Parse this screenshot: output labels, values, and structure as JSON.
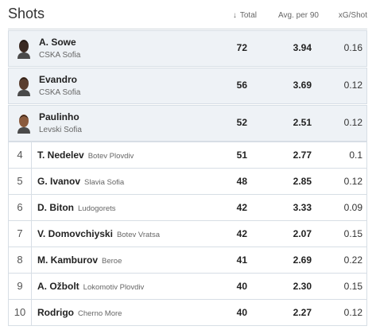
{
  "header": {
    "title": "Shots",
    "columns": {
      "total": "Total",
      "avg": "Avg. per 90",
      "xg": "xG/Shot"
    },
    "sort_arrow": "↓"
  },
  "top": [
    {
      "name": "A. Sowe",
      "team": "CSKA Sofia",
      "total": "72",
      "avg": "3.94",
      "xg": "0.16",
      "skin": "#3b2a22"
    },
    {
      "name": "Evandro",
      "team": "CSKA Sofia",
      "total": "56",
      "avg": "3.69",
      "xg": "0.12",
      "skin": "#5a3d2e"
    },
    {
      "name": "Paulinho",
      "team": "Levski Sofia",
      "total": "52",
      "avg": "2.51",
      "xg": "0.12",
      "skin": "#8a5a3c"
    }
  ],
  "rows": [
    {
      "rank": "4",
      "name": "T. Nedelev",
      "team": "Botev Plovdiv",
      "total": "51",
      "avg": "2.77",
      "xg": "0.1"
    },
    {
      "rank": "5",
      "name": "G. Ivanov",
      "team": "Slavia Sofia",
      "total": "48",
      "avg": "2.85",
      "xg": "0.12"
    },
    {
      "rank": "6",
      "name": "D. Biton",
      "team": "Ludogorets",
      "total": "42",
      "avg": "3.33",
      "xg": "0.09"
    },
    {
      "rank": "7",
      "name": "V. Domovchiyski",
      "team": "Botev Vratsa",
      "total": "42",
      "avg": "2.07",
      "xg": "0.15"
    },
    {
      "rank": "8",
      "name": "M. Kamburov",
      "team": "Beroe",
      "total": "41",
      "avg": "2.69",
      "xg": "0.22"
    },
    {
      "rank": "9",
      "name": "A. Ožbolt",
      "team": "Lokomotiv Plovdiv",
      "total": "40",
      "avg": "2.30",
      "xg": "0.15"
    },
    {
      "rank": "10",
      "name": "Rodrigo",
      "team": "Cherno More",
      "total": "40",
      "avg": "2.27",
      "xg": "0.12"
    }
  ]
}
